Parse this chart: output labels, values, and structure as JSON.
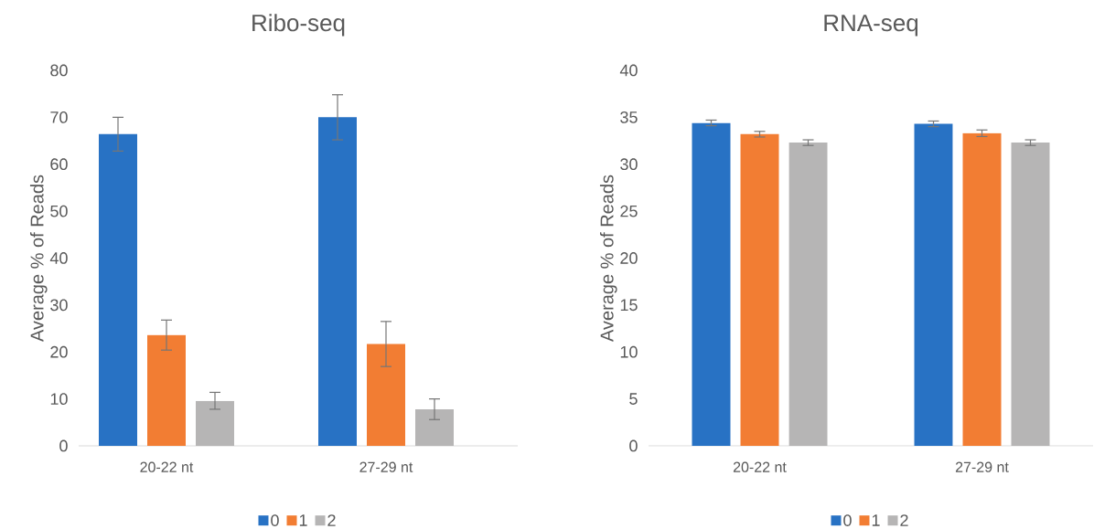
{
  "chart_data": [
    {
      "type": "bar",
      "title": "Ribo-seq",
      "ylabel": "Average % of Reads",
      "categories": [
        "20-22 nt",
        "27-29 nt"
      ],
      "series": [
        {
          "name": "0",
          "color": "#2872c4",
          "values": [
            66.4,
            70.0
          ],
          "errors": [
            3.6,
            4.8
          ]
        },
        {
          "name": "1",
          "color": "#f27d33",
          "values": [
            23.6,
            21.7
          ],
          "errors": [
            3.2,
            4.8
          ]
        },
        {
          "name": "2",
          "color": "#b6b5b5",
          "values": [
            9.6,
            7.8
          ],
          "errors": [
            1.8,
            2.2
          ]
        }
      ],
      "ylim": [
        0,
        80
      ],
      "yticks": [
        0,
        10,
        20,
        30,
        40,
        50,
        60,
        70,
        80
      ],
      "legend": "bottom"
    },
    {
      "type": "bar",
      "title": "RNA-seq",
      "ylabel": "Average % of Reads",
      "categories": [
        "20-22 nt",
        "27-29 nt"
      ],
      "series": [
        {
          "name": "0",
          "color": "#2872c4",
          "values": [
            34.4,
            34.3
          ],
          "errors": [
            0.3,
            0.3
          ]
        },
        {
          "name": "1",
          "color": "#f27d33",
          "values": [
            33.2,
            33.3
          ],
          "errors": [
            0.3,
            0.35
          ]
        },
        {
          "name": "2",
          "color": "#b6b5b5",
          "values": [
            32.3,
            32.3
          ],
          "errors": [
            0.3,
            0.3
          ]
        }
      ],
      "ylim": [
        0,
        40
      ],
      "yticks": [
        0,
        5,
        10,
        15,
        20,
        25,
        30,
        35,
        40
      ],
      "legend": "bottom"
    }
  ]
}
